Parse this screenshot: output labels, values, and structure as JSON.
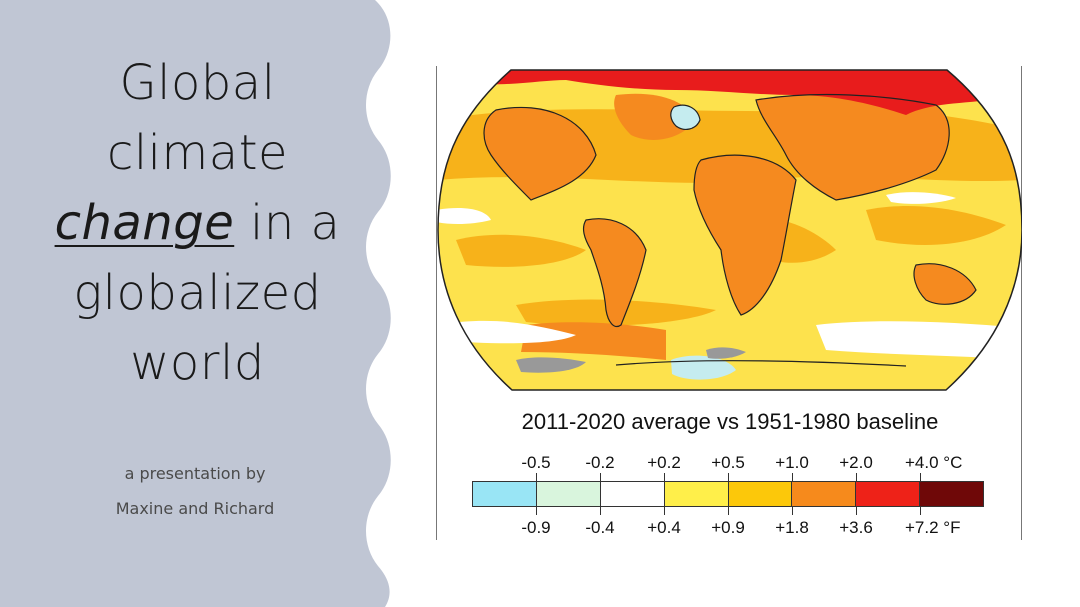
{
  "slide": {
    "title": {
      "line1": "Global",
      "line2": "climate",
      "line3_emphasis": "change",
      "line3_rest": " in a",
      "line4": "globalized",
      "line5": "world"
    },
    "byline": {
      "line1": "a presentation by",
      "line2": "Maxine and Richard"
    }
  },
  "figure": {
    "caption": "2011-2020 average vs 1951-1980 baseline",
    "legend": {
      "celsius_labels": [
        "-0.5",
        "-0.2",
        "+0.2",
        "+0.5",
        "+1.0",
        "+2.0",
        "+4.0 °C"
      ],
      "fahrenheit_labels": [
        "-0.9",
        "-0.4",
        "+0.4",
        "+0.9",
        "+1.8",
        "+3.6",
        "+7.2 °F"
      ],
      "colors": [
        "#99e5f5",
        "#d9f5dd",
        "#ffffff",
        "#ffef4a",
        "#fcc80a",
        "#f68a1c",
        "#ee2218",
        "#6f0808"
      ]
    },
    "map_colors": {
      "background": "#fde24d",
      "warm": "#f7b21a",
      "hot": "#f58a1f",
      "hottest": "#e81c1c",
      "neutral": "#ffffff",
      "cool": "#c5ecef",
      "no_data": "#999999"
    }
  },
  "theme": {
    "panel": "#c0c6d4",
    "accent_text": "#1a1a1a"
  }
}
